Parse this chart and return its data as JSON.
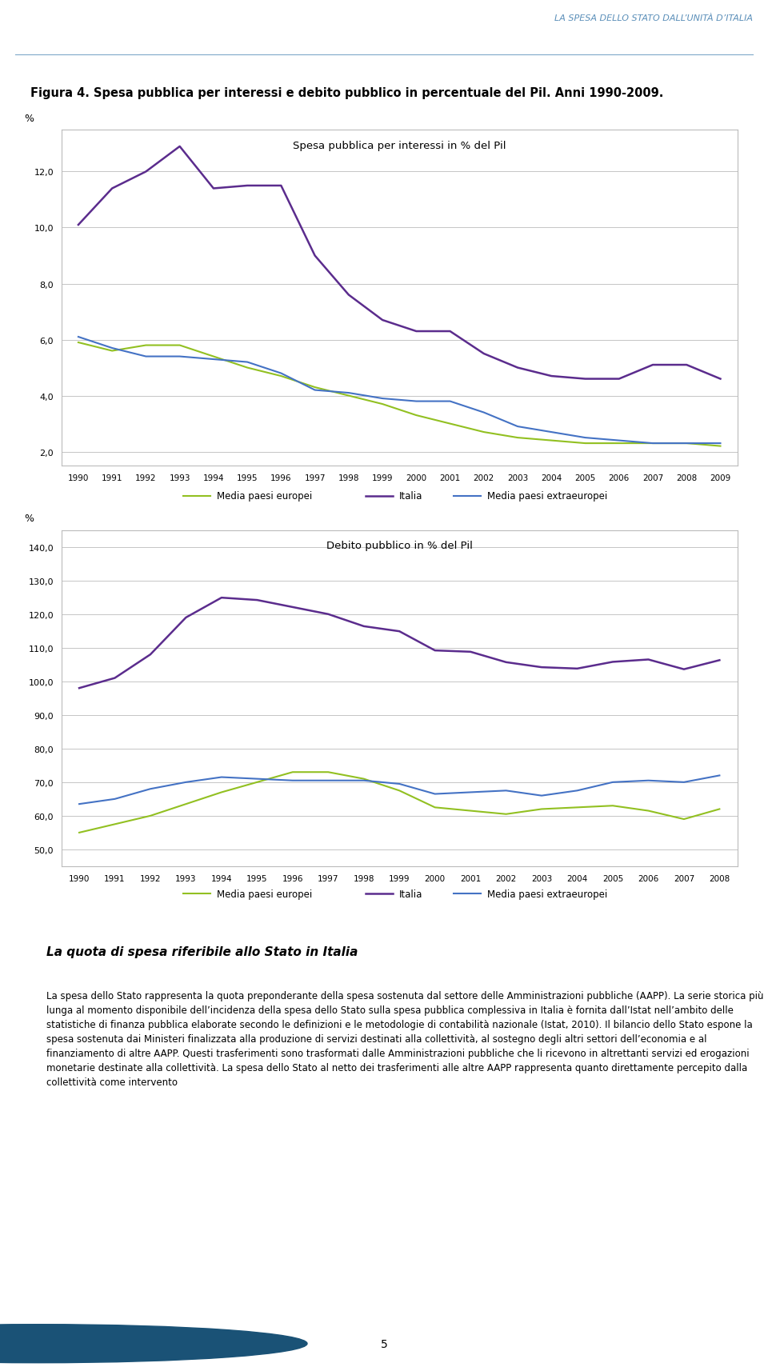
{
  "figure_title": "Figura 4. Spesa pubblica per interessi e debito pubblico in percentuale del Pil. Anni 1990-2009.",
  "header_text": "LA SPESA DELLO STATO DALL’UNITÀ D’ITALIA",
  "chart1_title": "Spesa pubblica per interessi in % del Pil",
  "chart1_ylabel": "%",
  "chart1_yticks": [
    2.0,
    4.0,
    6.0,
    8.0,
    10.0,
    12.0
  ],
  "chart1_ylim": [
    1.5,
    13.5
  ],
  "chart1_years": [
    1990,
    1991,
    1992,
    1993,
    1994,
    1995,
    1996,
    1997,
    1998,
    1999,
    2000,
    2001,
    2002,
    2003,
    2004,
    2005,
    2006,
    2007,
    2008,
    2009
  ],
  "chart1_italia": [
    10.1,
    11.4,
    12.0,
    12.9,
    11.4,
    11.5,
    11.5,
    9.0,
    7.6,
    6.7,
    6.3,
    6.3,
    5.5,
    5.0,
    4.7,
    4.6,
    4.6,
    5.1,
    5.1,
    4.6
  ],
  "chart1_europei": [
    5.9,
    5.6,
    5.8,
    5.8,
    5.4,
    5.0,
    4.7,
    4.3,
    4.0,
    3.7,
    3.3,
    3.0,
    2.7,
    2.5,
    2.4,
    2.3,
    2.3,
    2.3,
    2.3,
    2.2
  ],
  "chart1_extraeuropei": [
    6.1,
    5.7,
    5.4,
    5.4,
    5.3,
    5.2,
    4.8,
    4.2,
    4.1,
    3.9,
    3.8,
    3.8,
    3.4,
    2.9,
    2.7,
    2.5,
    2.4,
    2.3,
    2.3,
    2.3
  ],
  "chart2_title": "Debito pubblico in % del Pil",
  "chart2_ylabel": "%",
  "chart2_yticks": [
    50.0,
    60.0,
    70.0,
    80.0,
    90.0,
    100.0,
    110.0,
    120.0,
    130.0,
    140.0
  ],
  "chart2_ylim": [
    45.0,
    145.0
  ],
  "chart2_years": [
    1990,
    1991,
    1992,
    1993,
    1994,
    1995,
    1996,
    1997,
    1998,
    1999,
    2000,
    2001,
    2002,
    2003,
    2004,
    2005,
    2006,
    2007,
    2008
  ],
  "chart2_italia": [
    98.0,
    101.0,
    108.0,
    119.0,
    124.9,
    124.2,
    122.1,
    120.0,
    116.4,
    114.9,
    109.2,
    108.8,
    105.7,
    104.2,
    103.8,
    105.8,
    106.5,
    103.6,
    106.3
  ],
  "chart2_europei": [
    55.0,
    57.5,
    60.0,
    63.5,
    67.0,
    70.0,
    73.0,
    73.0,
    71.0,
    67.5,
    62.5,
    61.5,
    60.5,
    62.0,
    62.5,
    63.0,
    61.5,
    59.0,
    62.0
  ],
  "chart2_extraeuropei": [
    63.5,
    65.0,
    68.0,
    70.0,
    71.5,
    71.0,
    70.5,
    70.5,
    70.5,
    69.5,
    66.5,
    67.0,
    67.5,
    66.0,
    67.5,
    70.0,
    70.5,
    70.0,
    72.0
  ],
  "color_italia": "#5B2C8D",
  "color_europei": "#92C021",
  "color_extraeuropei": "#4472C4",
  "legend_labels": [
    "Media paesi europei",
    "Italia",
    "Media paesi extraeuropei"
  ],
  "body_title": "La quota di spesa riferibile allo Stato in Italia",
  "body_text": "La spesa dello Stato rappresenta la quota preponderante della spesa sostenuta dal settore delle Amministrazioni pubbliche (AAPP). La serie storica più lunga al momento disponibile dell’incidenza della spesa dello Stato sulla spesa pubblica complessiva in Italia è fornita dall’Istat nell’ambito delle statistiche di finanza pubblica elaborate secondo le definizioni e le metodologie di contabilità nazionale (Istat, 2010). Il bilancio dello Stato espone la spesa sostenuta dai Ministeri finalizzata alla produzione di servizi destinati alla collettività, al sostegno degli altri settori dell’economia e al finanziamento di altre AAPP. Questi trasferimenti sono trasformati dalle Amministrazioni pubbliche che li ricevono in altrettanti servizi ed erogazioni monetarie destinate alla collettività. La spesa dello Stato al netto dei trasferimenti alle altre AAPP rappresenta quanto direttamente percepito dalla collettività come intervento",
  "page_number": "5"
}
